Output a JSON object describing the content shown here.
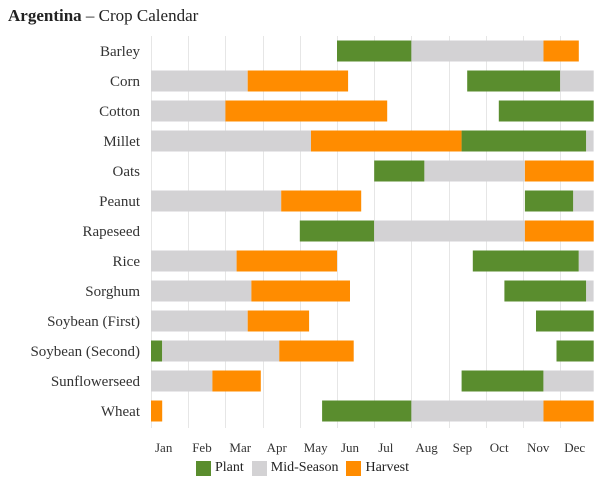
{
  "chart_data": {
    "type": "bar",
    "title": {
      "country": "Argentina",
      "separator": "–",
      "subtitle": "Crop Calendar"
    },
    "months": [
      "Jan",
      "Feb",
      "Mar",
      "Apr",
      "May",
      "Jun",
      "Jul",
      "Aug",
      "Sep",
      "Oct",
      "Nov",
      "Dec"
    ],
    "xlim": [
      1,
      12.9
    ],
    "grid": true,
    "legend": {
      "position": "bottom",
      "items": [
        {
          "key": "plant",
          "label": "Plant",
          "color": "#5a8d2e"
        },
        {
          "key": "mid",
          "label": "Mid-Season",
          "color": "#d3d2d4"
        },
        {
          "key": "harvest",
          "label": "Harvest",
          "color": "#ff8c00"
        }
      ]
    },
    "crops": [
      {
        "name": "Barley",
        "segments": [
          {
            "phase": "plant",
            "start": 6.0,
            "end": 8.0
          },
          {
            "phase": "mid",
            "start": 8.0,
            "end": 11.55
          },
          {
            "phase": "harvest",
            "start": 11.55,
            "end": 12.5
          }
        ]
      },
      {
        "name": "Corn",
        "segments": [
          {
            "phase": "plant",
            "start": 9.5,
            "end": 12.0
          },
          {
            "phase": "mid",
            "start": 12.0,
            "end": 12.9
          },
          {
            "phase": "mid",
            "start": 1.0,
            "end": 3.6
          },
          {
            "phase": "harvest",
            "start": 3.6,
            "end": 6.3
          }
        ]
      },
      {
        "name": "Cotton",
        "segments": [
          {
            "phase": "plant",
            "start": 10.35,
            "end": 12.9
          },
          {
            "phase": "mid",
            "start": 1.0,
            "end": 3.0
          },
          {
            "phase": "harvest",
            "start": 3.0,
            "end": 7.35
          }
        ]
      },
      {
        "name": "Millet",
        "segments": [
          {
            "phase": "mid",
            "start": 1.0,
            "end": 5.3
          },
          {
            "phase": "harvest",
            "start": 5.3,
            "end": 9.35
          },
          {
            "phase": "plant",
            "start": 9.35,
            "end": 12.7
          },
          {
            "phase": "mid",
            "start": 12.7,
            "end": 12.9
          }
        ]
      },
      {
        "name": "Oats",
        "segments": [
          {
            "phase": "plant",
            "start": 7.0,
            "end": 8.35
          },
          {
            "phase": "mid",
            "start": 8.35,
            "end": 11.05
          },
          {
            "phase": "harvest",
            "start": 11.05,
            "end": 12.9
          }
        ]
      },
      {
        "name": "Peanut",
        "segments": [
          {
            "phase": "mid",
            "start": 1.0,
            "end": 4.5
          },
          {
            "phase": "harvest",
            "start": 4.5,
            "end": 6.65
          },
          {
            "phase": "plant",
            "start": 11.05,
            "end": 12.35
          },
          {
            "phase": "mid",
            "start": 12.35,
            "end": 12.9
          }
        ]
      },
      {
        "name": "Rapeseed",
        "segments": [
          {
            "phase": "plant",
            "start": 5.0,
            "end": 7.0
          },
          {
            "phase": "mid",
            "start": 7.0,
            "end": 11.05
          },
          {
            "phase": "harvest",
            "start": 11.05,
            "end": 12.9
          }
        ]
      },
      {
        "name": "Rice",
        "segments": [
          {
            "phase": "mid",
            "start": 1.0,
            "end": 3.3
          },
          {
            "phase": "harvest",
            "start": 3.3,
            "end": 6.0
          },
          {
            "phase": "plant",
            "start": 9.65,
            "end": 12.5
          },
          {
            "phase": "mid",
            "start": 12.5,
            "end": 12.9
          }
        ]
      },
      {
        "name": "Sorghum",
        "segments": [
          {
            "phase": "mid",
            "start": 1.0,
            "end": 3.7
          },
          {
            "phase": "harvest",
            "start": 3.7,
            "end": 6.35
          },
          {
            "phase": "plant",
            "start": 10.5,
            "end": 12.7
          },
          {
            "phase": "mid",
            "start": 12.7,
            "end": 12.9
          }
        ]
      },
      {
        "name": "Soybean (First)",
        "segments": [
          {
            "phase": "mid",
            "start": 1.0,
            "end": 3.6
          },
          {
            "phase": "harvest",
            "start": 3.6,
            "end": 5.25
          },
          {
            "phase": "plant",
            "start": 11.35,
            "end": 12.9
          }
        ]
      },
      {
        "name": "Soybean (Second)",
        "segments": [
          {
            "phase": "plant",
            "start": 1.0,
            "end": 1.3
          },
          {
            "phase": "mid",
            "start": 1.3,
            "end": 4.45
          },
          {
            "phase": "harvest",
            "start": 4.45,
            "end": 6.45
          },
          {
            "phase": "plant",
            "start": 11.9,
            "end": 12.9
          }
        ]
      },
      {
        "name": "Sunflowerseed",
        "segments": [
          {
            "phase": "mid",
            "start": 1.0,
            "end": 2.65
          },
          {
            "phase": "harvest",
            "start": 2.65,
            "end": 3.95
          },
          {
            "phase": "plant",
            "start": 9.35,
            "end": 11.55
          },
          {
            "phase": "mid",
            "start": 11.55,
            "end": 12.9
          }
        ]
      },
      {
        "name": "Wheat",
        "segments": [
          {
            "phase": "harvest",
            "start": 1.0,
            "end": 1.3
          },
          {
            "phase": "plant",
            "start": 5.6,
            "end": 8.0
          },
          {
            "phase": "mid",
            "start": 8.0,
            "end": 11.55
          },
          {
            "phase": "harvest",
            "start": 11.55,
            "end": 12.9
          }
        ]
      }
    ]
  }
}
